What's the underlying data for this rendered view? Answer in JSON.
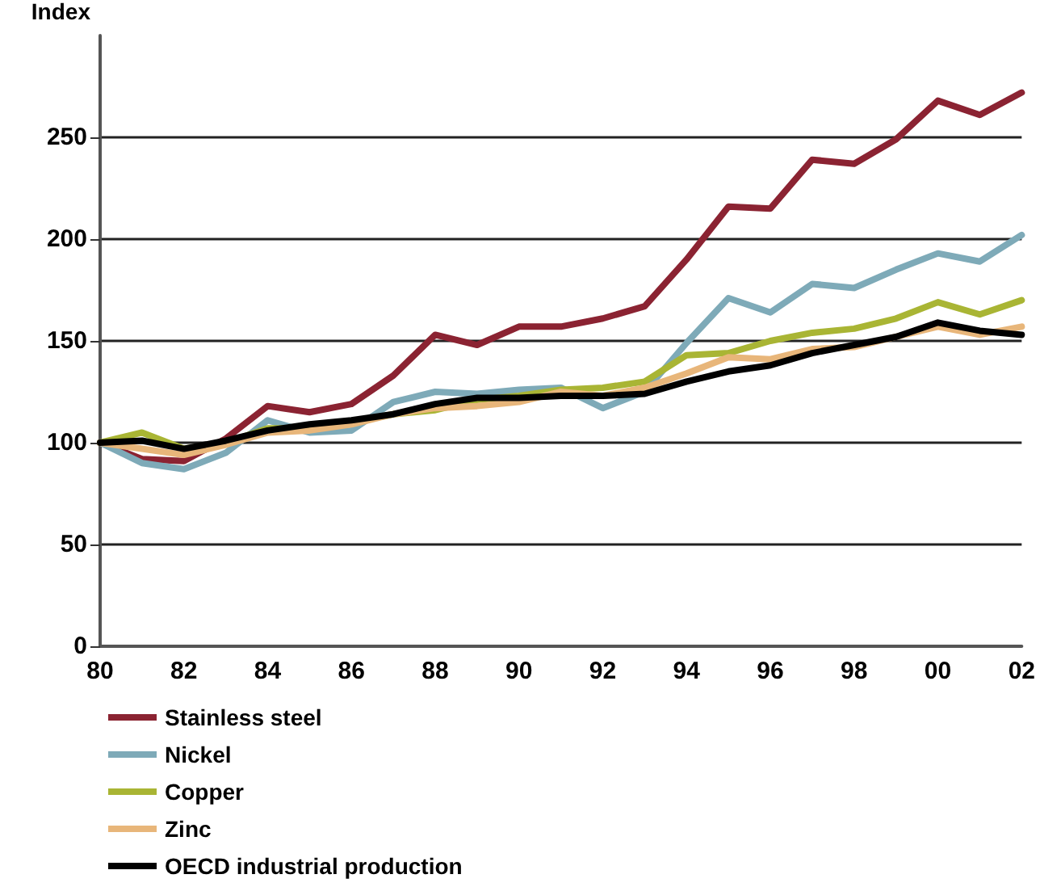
{
  "chart_data": {
    "type": "line",
    "ylabel": "Index",
    "categories": [
      "80",
      null,
      "82",
      null,
      "84",
      null,
      "86",
      null,
      "88",
      null,
      "90",
      null,
      "92",
      null,
      "94",
      null,
      "96",
      null,
      "98",
      null,
      "00",
      null,
      "02"
    ],
    "series": [
      {
        "name": "Stainless steel",
        "color": "#8b2332",
        "values": [
          100,
          92,
          91,
          102,
          118,
          115,
          119,
          133,
          153,
          148,
          157,
          157,
          161,
          167,
          190,
          216,
          215,
          239,
          237,
          249,
          268,
          261,
          272
        ]
      },
      {
        "name": "Nickel",
        "color": "#7eaab8",
        "values": [
          100,
          90,
          87,
          95,
          111,
          105,
          106,
          120,
          125,
          124,
          126,
          127,
          117,
          125,
          149,
          171,
          164,
          178,
          176,
          185,
          193,
          189,
          202
        ]
      },
      {
        "name": "Copper",
        "color": "#a9b534",
        "values": [
          100,
          105,
          97,
          100,
          107,
          107,
          110,
          114,
          116,
          121,
          123,
          126,
          127,
          130,
          143,
          144,
          150,
          154,
          156,
          161,
          169,
          163,
          170
        ]
      },
      {
        "name": "Zinc",
        "color": "#e8b67a",
        "values": [
          100,
          97,
          94,
          99,
          105,
          106,
          109,
          114,
          117,
          118,
          120,
          125,
          123,
          127,
          134,
          142,
          141,
          146,
          147,
          152,
          157,
          153,
          157
        ]
      },
      {
        "name": "OECD industrial production",
        "color": "#000000",
        "values": [
          100,
          101,
          97,
          101,
          106,
          109,
          111,
          114,
          119,
          122,
          122,
          123,
          123,
          124,
          130,
          135,
          138,
          144,
          148,
          152,
          159,
          155,
          153
        ]
      }
    ],
    "ylim": [
      0,
      300
    ],
    "yticks": [
      0,
      50,
      100,
      150,
      200,
      250
    ],
    "grid": "y",
    "legend": "bottom",
    "marker": "none",
    "line_style": "solid"
  }
}
